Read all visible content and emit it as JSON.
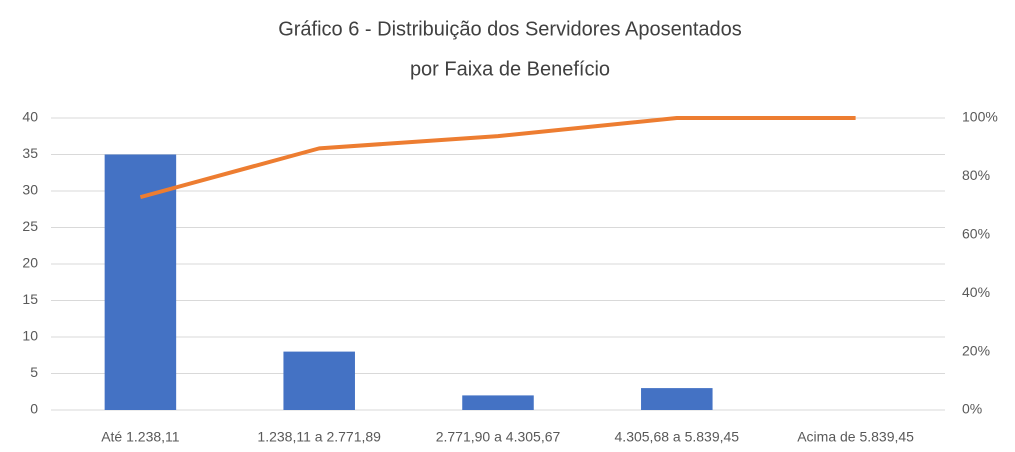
{
  "chart_data": {
    "type": "pareto",
    "title": [
      "Gráfico 6 - Distribuição dos Servidores Aposentados",
      "por Faixa de Benefício"
    ],
    "categories": [
      "Até 1.238,11",
      "1.238,11 a 2.771,89",
      "2.771,90 a 4.305,67",
      "4.305,68 a 5.839,45",
      "Acima de 5.839,45"
    ],
    "series": [
      {
        "type": "bar",
        "color": "#4472c4",
        "values": [
          35,
          8,
          2,
          3,
          0
        ]
      },
      {
        "type": "line",
        "axis": "y2",
        "color": "#ed7d31",
        "values": [
          72.9,
          89.6,
          93.8,
          100,
          100
        ]
      }
    ],
    "ylim": [
      0,
      40
    ],
    "yticks": [
      0,
      5,
      10,
      15,
      20,
      25,
      30,
      35,
      40
    ],
    "y2lim": [
      0,
      100
    ],
    "y2ticks": [
      {
        "value": 0,
        "label": "0%"
      },
      {
        "value": 20,
        "label": "20%"
      },
      {
        "value": 40,
        "label": "40%"
      },
      {
        "value": 60,
        "label": "60%"
      },
      {
        "value": 80,
        "label": "80%"
      },
      {
        "value": 100,
        "label": "100%"
      }
    ],
    "grid": true
  }
}
